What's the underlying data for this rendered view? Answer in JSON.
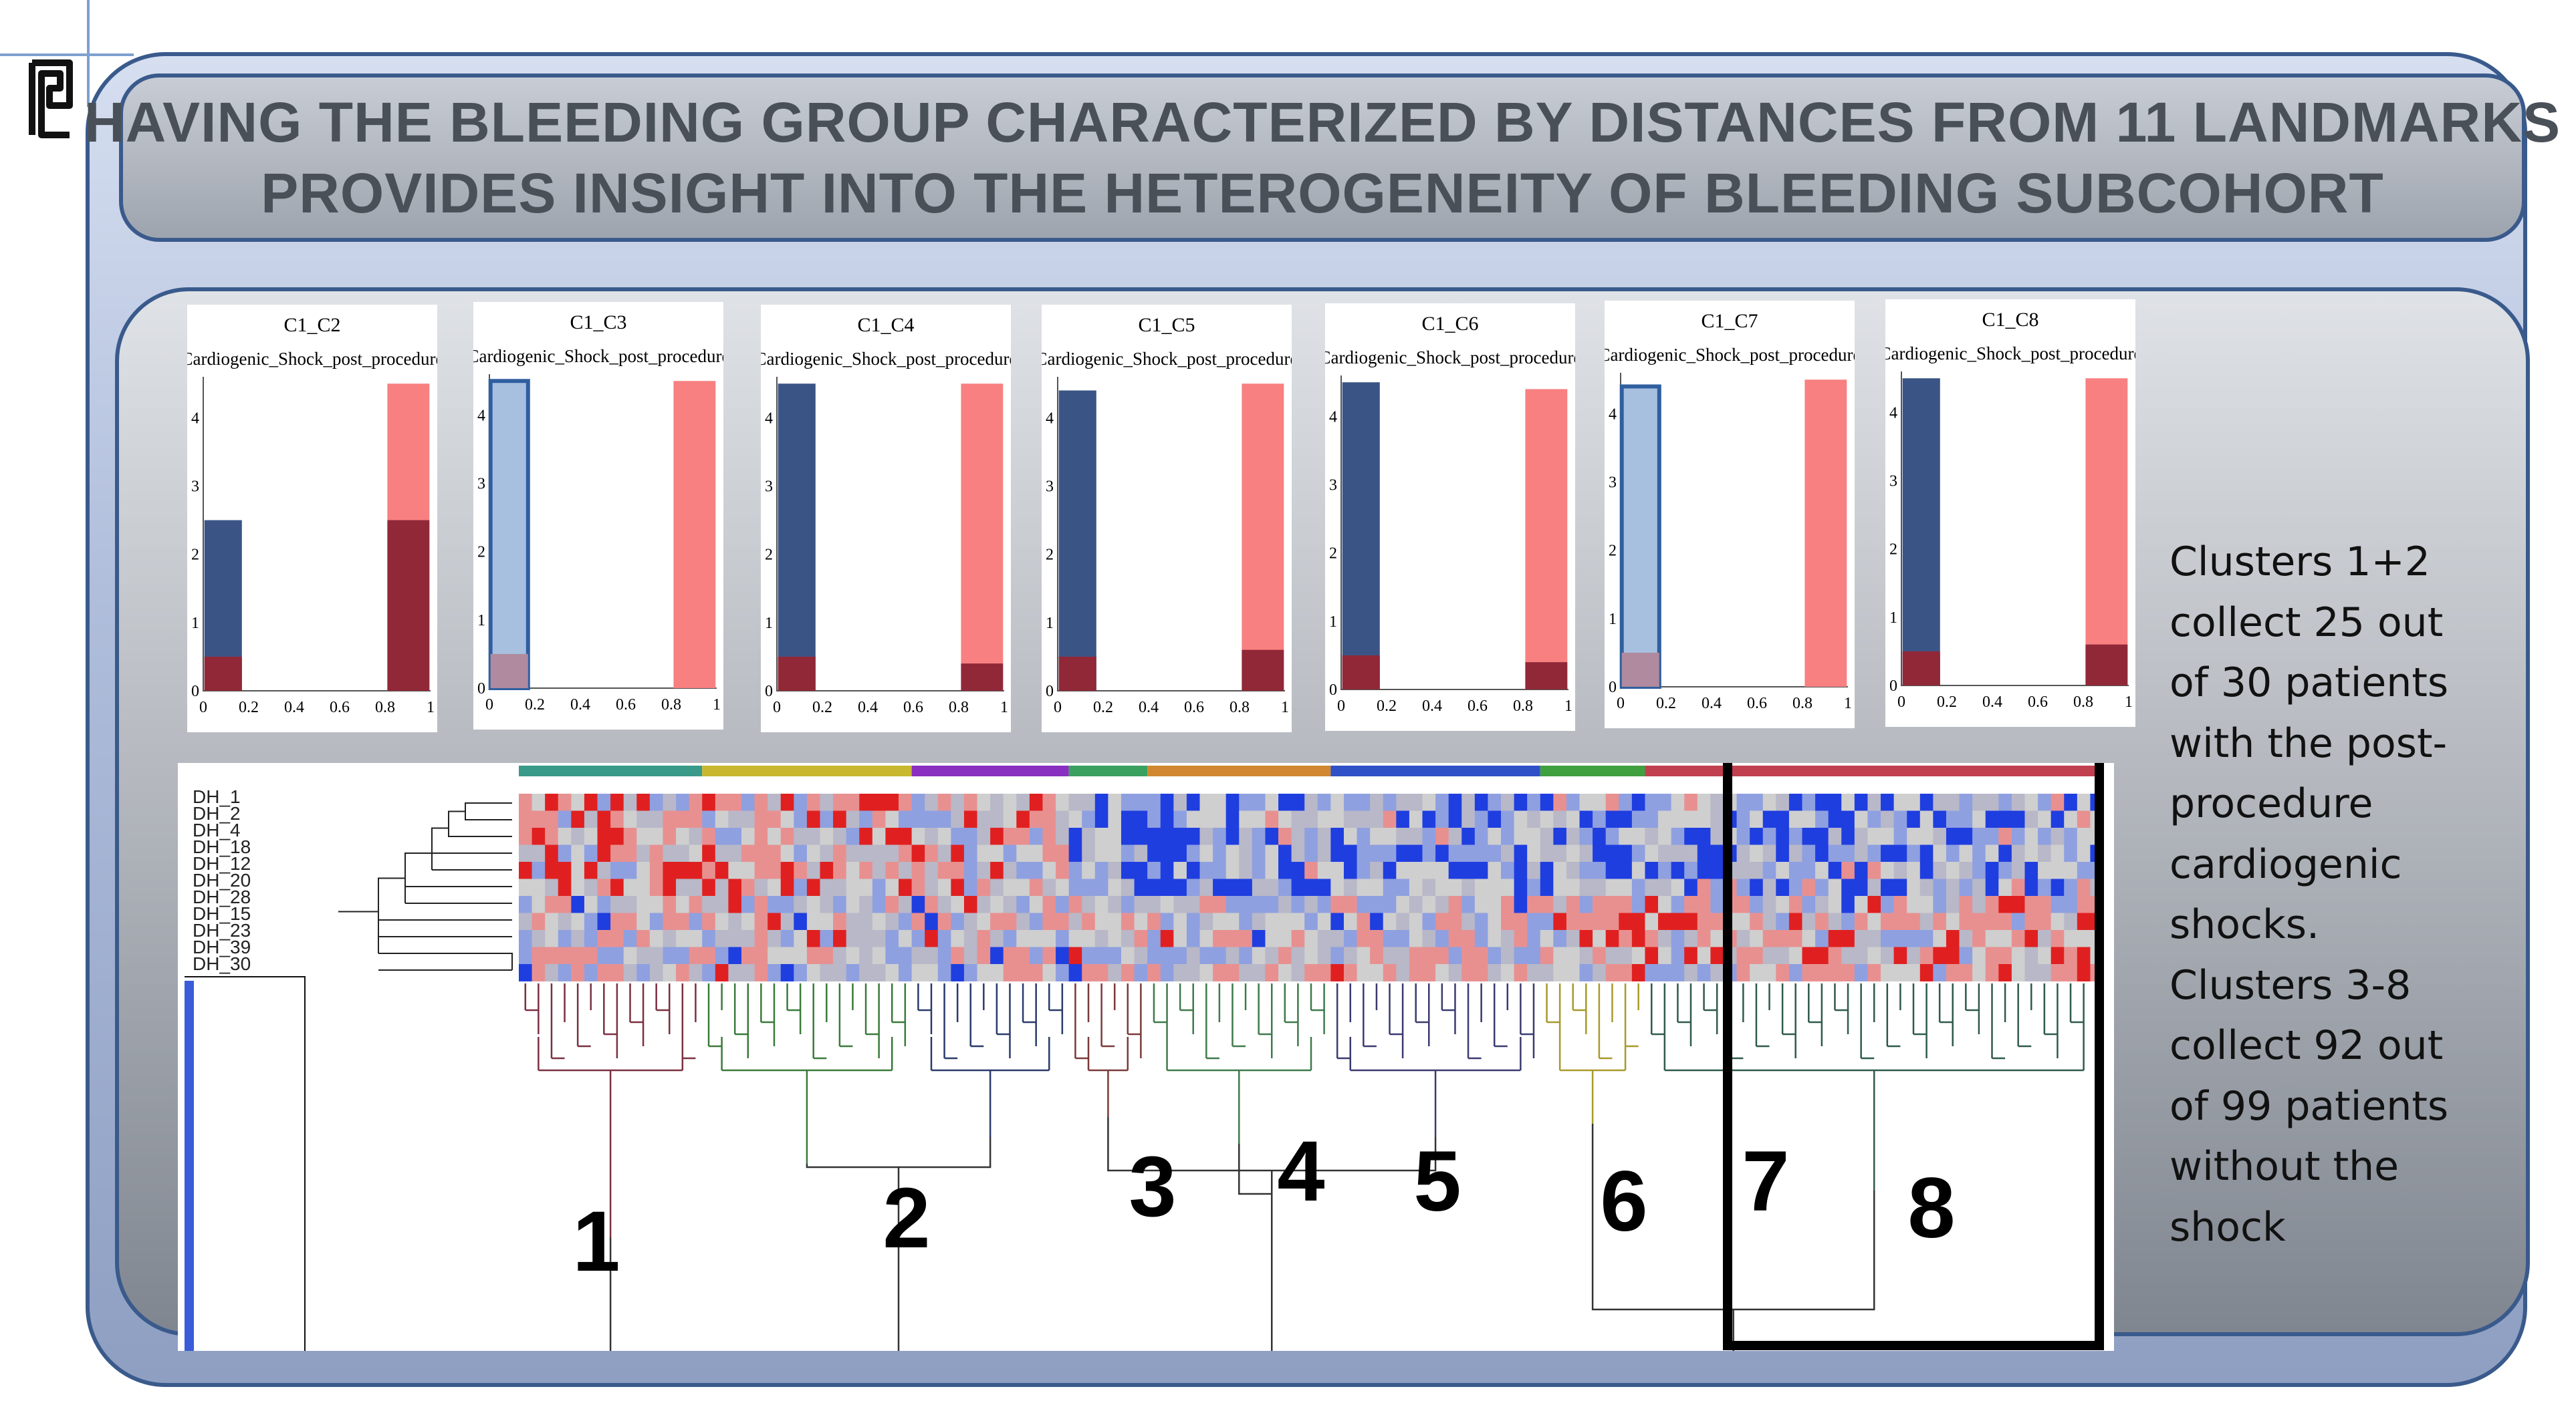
{
  "title": {
    "line1": "HAVING THE BLEEDING GROUP CHARACTERIZED BY DISTANCES FROM 11 LANDMARKS",
    "line2": "PROVIDES INSIGHT INTO THE HETEROGENEITY OF BLEEDING SUBCOHORT"
  },
  "mini_charts": [
    {
      "title": "C1_C2",
      "subtitle": "Cardiogenic_Shock_post_procedure",
      "left_value": 2.5,
      "left_dark": 0.5,
      "right_value": 4.5,
      "right_dark": 2.5,
      "left_style": "dark"
    },
    {
      "title": "C1_C3",
      "subtitle": "Cardiogenic_Shock_post_procedure",
      "left_value": 4.5,
      "left_dark": 0.5,
      "right_value": 4.5,
      "right_dark": 0,
      "left_style": "light"
    },
    {
      "title": "C1_C4",
      "subtitle": "Cardiogenic_Shock_post_procedure",
      "left_value": 4.5,
      "left_dark": 0.5,
      "right_value": 4.5,
      "right_dark": 0.4,
      "left_style": "dark"
    },
    {
      "title": "C1_C5",
      "subtitle": "Cardiogenic_Shock_post_procedure",
      "left_value": 4.4,
      "left_dark": 0.5,
      "right_value": 4.5,
      "right_dark": 0.6,
      "left_style": "dark"
    },
    {
      "title": "C1_C6",
      "subtitle": "Cardiogenic_Shock_post_procedure",
      "left_value": 4.5,
      "left_dark": 0.5,
      "right_value": 4.4,
      "right_dark": 0.4,
      "left_style": "dark"
    },
    {
      "title": "C1_C7",
      "subtitle": "Cardiogenic_Shock_post_procedure",
      "left_value": 4.4,
      "left_dark": 0.5,
      "right_value": 4.5,
      "right_dark": 0,
      "left_style": "light"
    },
    {
      "title": "C1_C8",
      "subtitle": "Cardiogenic_Shock_post_procedure",
      "left_value": 4.5,
      "left_dark": 0.5,
      "right_value": 4.5,
      "right_dark": 0.6,
      "left_style": "dark"
    }
  ],
  "mini_axis": {
    "x_ticks": [
      "0",
      "0.2",
      "0.4",
      "0.6",
      "0.8",
      "1"
    ],
    "y_ticks": [
      "0",
      "1",
      "2",
      "3",
      "4"
    ],
    "y_max": 4.6
  },
  "side_text": {
    "lines": [
      "Clusters 1+2",
      "collect  25 out",
      "of 30 patients",
      "with the post-",
      "procedure",
      "cardiogenic",
      "shocks.",
      "Clusters 3-8",
      "collect 92 out",
      "of 99 patients",
      "without the",
      "shock"
    ]
  },
  "heatmap": {
    "row_labels": [
      "DH_1",
      "DH_2",
      "DH_4",
      "DH_18",
      "DH_12",
      "DH_20",
      "DH_28",
      "DH_15",
      "DH_23",
      "DH_39",
      "DH_30"
    ],
    "clusters": [
      {
        "label": "8",
        "color": "#2f5a4a"
      },
      {
        "label": "7",
        "color": "#a89a2a"
      },
      {
        "label": "6",
        "color": "#3a3a70"
      },
      {
        "label": "5",
        "color": "#3f7a4a"
      },
      {
        "label": "4",
        "color": "#7a3a3a"
      },
      {
        "label": "3",
        "color": "#2a3a6a"
      },
      {
        "label": "2",
        "color": "#3a7a3a"
      },
      {
        "label": "1",
        "color": "#7a3040"
      }
    ],
    "colors": {
      "low": "#1a3de8",
      "high": "#e81a1a",
      "mid": "#c8c8c8"
    }
  }
}
